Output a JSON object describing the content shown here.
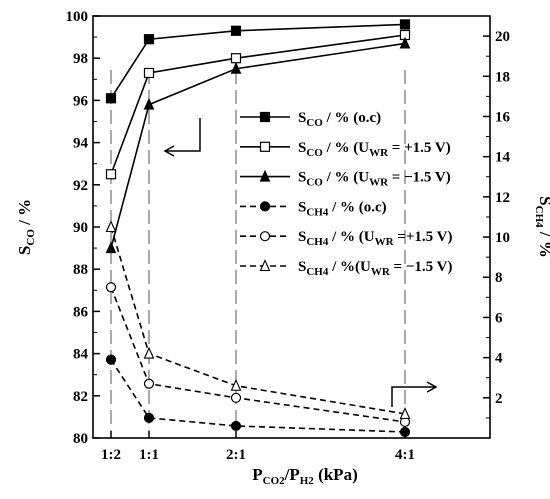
{
  "chart_data": {
    "type": "line",
    "categories": [
      "1:2",
      "1:1",
      "2:1",
      "4:1"
    ],
    "x": [
      0.5,
      1,
      2,
      4
    ],
    "xlabel": "PCO2/PH2 (kPa)",
    "ylabel_left": "SCO / %",
    "ylabel_right": "SCH4 / %",
    "ylim_left": [
      80,
      100
    ],
    "ylim_right": [
      0,
      21
    ],
    "yticks_left": [
      80,
      82,
      84,
      86,
      88,
      90,
      92,
      94,
      96,
      98,
      100
    ],
    "yticks_right": [
      2,
      4,
      6,
      8,
      10,
      12,
      14,
      16,
      18,
      20
    ],
    "series": [
      {
        "name": "SCO / % (o.c)",
        "axis": "left",
        "marker": "square-filled",
        "dash": "solid",
        "values": [
          96.1,
          98.9,
          99.3,
          99.6
        ]
      },
      {
        "name": "SCO / % (UWR = +1.5 V)",
        "axis": "left",
        "marker": "square-open",
        "dash": "solid",
        "values": [
          92.5,
          97.3,
          98.0,
          99.1
        ]
      },
      {
        "name": "SCO / % (UWR = −1.5 V)",
        "axis": "left",
        "marker": "triangle-filled",
        "dash": "solid",
        "values": [
          89.0,
          95.8,
          97.5,
          98.7
        ]
      },
      {
        "name": "SCH4 / % (o.c)",
        "axis": "right",
        "marker": "circle-filled",
        "dash": "dashed",
        "values": [
          3.9,
          1.0,
          0.6,
          0.3
        ]
      },
      {
        "name": "SCH4 / % (UWR = +1.5 V)",
        "axis": "right",
        "marker": "circle-open",
        "dash": "dashed",
        "values": [
          7.5,
          2.7,
          2.0,
          0.8
        ]
      },
      {
        "name": "SCH4 / %(UWR = −1.5 V)",
        "axis": "right",
        "marker": "triangle-open",
        "dash": "dashed",
        "values": [
          10.5,
          4.2,
          2.6,
          1.2
        ]
      }
    ],
    "legend_position": "right",
    "grid": false
  }
}
